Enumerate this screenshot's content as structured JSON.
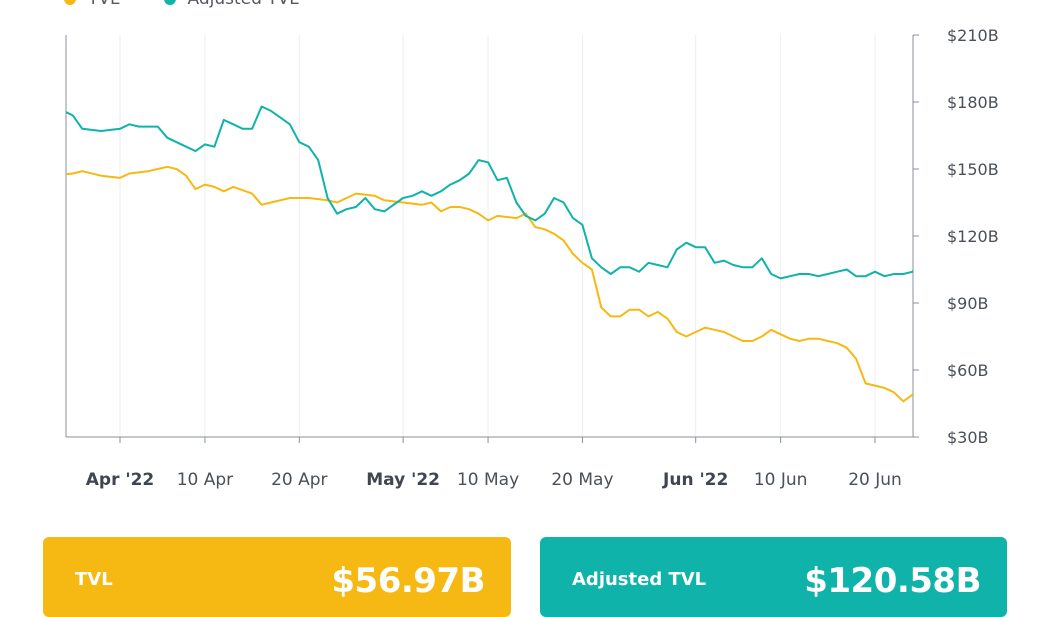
{
  "legend": [
    {
      "label": "TVL",
      "color": "#f6b913"
    },
    {
      "label": "Adjusted TVL",
      "color": "#0fb3a9"
    }
  ],
  "cards": {
    "tvl": {
      "label": "TVL",
      "value": "$56.97B"
    },
    "adjusted": {
      "label": "Adjusted TVL",
      "value": "$120.58B"
    }
  },
  "chart_data": {
    "type": "line",
    "x_range": [
      "2022-03-24",
      "2022-06-23"
    ],
    "ylim": [
      30,
      210
    ],
    "y_ticks": [
      {
        "value": 210,
        "label": "$210B"
      },
      {
        "value": 180,
        "label": "$180B"
      },
      {
        "value": 150,
        "label": "$150B"
      },
      {
        "value": 120,
        "label": "$120B"
      },
      {
        "value": 90,
        "label": "$90B"
      },
      {
        "value": 60,
        "label": "$60B"
      },
      {
        "value": 30,
        "label": "$30B"
      }
    ],
    "x_ticks": [
      {
        "date": "2022-04-01",
        "label": "Apr '22",
        "bold": true
      },
      {
        "date": "2022-04-10",
        "label": "10 Apr",
        "bold": false
      },
      {
        "date": "2022-04-20",
        "label": "20 Apr",
        "bold": false
      },
      {
        "date": "2022-05-01",
        "label": "May '22",
        "bold": true
      },
      {
        "date": "2022-05-10",
        "label": "10 May",
        "bold": false
      },
      {
        "date": "2022-05-20",
        "label": "20 May",
        "bold": false
      },
      {
        "date": "2022-06-01",
        "label": "Jun '22",
        "bold": true
      },
      {
        "date": "2022-06-10",
        "label": "10 Jun",
        "bold": false
      },
      {
        "date": "2022-06-20",
        "label": "20 Jun",
        "bold": false
      }
    ],
    "grid": "vertical",
    "legend_position": "top-left",
    "series": [
      {
        "name": "TVL",
        "color": "#f6b913",
        "points": [
          [
            "2022-03-24",
            143
          ],
          [
            "2022-03-25",
            147
          ],
          [
            "2022-03-27",
            148
          ],
          [
            "2022-03-28",
            149
          ],
          [
            "2022-03-30",
            147
          ],
          [
            "2022-04-01",
            146
          ],
          [
            "2022-04-02",
            148
          ],
          [
            "2022-04-04",
            149
          ],
          [
            "2022-04-05",
            150
          ],
          [
            "2022-04-06",
            151
          ],
          [
            "2022-04-07",
            150
          ],
          [
            "2022-04-08",
            147
          ],
          [
            "2022-04-09",
            141
          ],
          [
            "2022-04-10",
            143
          ],
          [
            "2022-04-11",
            142
          ],
          [
            "2022-04-12",
            140
          ],
          [
            "2022-04-13",
            142
          ],
          [
            "2022-04-15",
            139
          ],
          [
            "2022-04-16",
            134
          ],
          [
            "2022-04-17",
            135
          ],
          [
            "2022-04-19",
            137
          ],
          [
            "2022-04-21",
            137
          ],
          [
            "2022-04-23",
            136
          ],
          [
            "2022-04-24",
            135
          ],
          [
            "2022-04-26",
            139
          ],
          [
            "2022-04-28",
            138
          ],
          [
            "2022-04-29",
            136
          ],
          [
            "2022-05-01",
            135
          ],
          [
            "2022-05-03",
            134
          ],
          [
            "2022-05-04",
            135
          ],
          [
            "2022-05-05",
            131
          ],
          [
            "2022-05-06",
            133
          ],
          [
            "2022-05-07",
            133
          ],
          [
            "2022-05-08",
            132
          ],
          [
            "2022-05-09",
            130
          ],
          [
            "2022-05-10",
            127
          ],
          [
            "2022-05-11",
            129
          ],
          [
            "2022-05-13",
            128
          ],
          [
            "2022-05-14",
            130
          ],
          [
            "2022-05-15",
            124
          ],
          [
            "2022-05-16",
            123
          ],
          [
            "2022-05-17",
            121
          ],
          [
            "2022-05-18",
            118
          ],
          [
            "2022-05-19",
            112
          ],
          [
            "2022-05-20",
            108
          ],
          [
            "2022-05-21",
            105
          ],
          [
            "2022-05-22",
            88
          ],
          [
            "2022-05-23",
            84
          ],
          [
            "2022-05-24",
            84
          ],
          [
            "2022-05-25",
            87
          ],
          [
            "2022-05-26",
            87
          ],
          [
            "2022-05-27",
            84
          ],
          [
            "2022-05-28",
            86
          ],
          [
            "2022-05-29",
            83
          ],
          [
            "2022-05-30",
            77
          ],
          [
            "2022-05-31",
            75
          ],
          [
            "2022-06-01",
            77
          ],
          [
            "2022-06-02",
            79
          ],
          [
            "2022-06-03",
            78
          ],
          [
            "2022-06-04",
            77
          ],
          [
            "2022-06-05",
            75
          ],
          [
            "2022-06-06",
            73
          ],
          [
            "2022-06-07",
            73
          ],
          [
            "2022-06-08",
            75
          ],
          [
            "2022-06-09",
            78
          ],
          [
            "2022-06-10",
            76
          ],
          [
            "2022-06-11",
            74
          ],
          [
            "2022-06-12",
            73
          ],
          [
            "2022-06-13",
            74
          ],
          [
            "2022-06-14",
            74
          ],
          [
            "2022-06-15",
            73
          ],
          [
            "2022-06-16",
            72
          ],
          [
            "2022-06-17",
            70
          ],
          [
            "2022-06-18",
            65
          ],
          [
            "2022-06-19",
            54
          ],
          [
            "2022-06-20",
            53
          ],
          [
            "2022-06-21",
            52
          ],
          [
            "2022-06-22",
            50
          ],
          [
            "2022-06-23",
            46
          ],
          [
            "2022-06-24",
            49
          ],
          [
            "2022-06-25",
            49
          ],
          [
            "2022-06-26",
            48
          ],
          [
            "2022-06-27",
            57
          ]
        ]
      },
      {
        "name": "Adjusted TVL",
        "color": "#0fb3a9",
        "points": [
          [
            "2022-03-24",
            182
          ],
          [
            "2022-03-25",
            180
          ],
          [
            "2022-03-26",
            176
          ],
          [
            "2022-03-27",
            174
          ],
          [
            "2022-03-28",
            168
          ],
          [
            "2022-03-30",
            167
          ],
          [
            "2022-04-01",
            168
          ],
          [
            "2022-04-02",
            170
          ],
          [
            "2022-04-03",
            169
          ],
          [
            "2022-04-05",
            169
          ],
          [
            "2022-04-06",
            164
          ],
          [
            "2022-04-07",
            162
          ],
          [
            "2022-04-08",
            160
          ],
          [
            "2022-04-09",
            158
          ],
          [
            "2022-04-10",
            161
          ],
          [
            "2022-04-11",
            160
          ],
          [
            "2022-04-12",
            172
          ],
          [
            "2022-04-13",
            170
          ],
          [
            "2022-04-14",
            168
          ],
          [
            "2022-04-15",
            168
          ],
          [
            "2022-04-16",
            178
          ],
          [
            "2022-04-17",
            176
          ],
          [
            "2022-04-18",
            173
          ],
          [
            "2022-04-19",
            170
          ],
          [
            "2022-04-20",
            162
          ],
          [
            "2022-04-21",
            160
          ],
          [
            "2022-04-22",
            154
          ],
          [
            "2022-04-23",
            137
          ],
          [
            "2022-04-24",
            130
          ],
          [
            "2022-04-25",
            132
          ],
          [
            "2022-04-26",
            133
          ],
          [
            "2022-04-27",
            137
          ],
          [
            "2022-04-28",
            132
          ],
          [
            "2022-04-29",
            131
          ],
          [
            "2022-04-30",
            134
          ],
          [
            "2022-05-01",
            137
          ],
          [
            "2022-05-02",
            138
          ],
          [
            "2022-05-03",
            140
          ],
          [
            "2022-05-04",
            138
          ],
          [
            "2022-05-05",
            140
          ],
          [
            "2022-05-06",
            143
          ],
          [
            "2022-05-07",
            145
          ],
          [
            "2022-05-08",
            148
          ],
          [
            "2022-05-09",
            154
          ],
          [
            "2022-05-10",
            153
          ],
          [
            "2022-05-11",
            145
          ],
          [
            "2022-05-12",
            146
          ],
          [
            "2022-05-13",
            135
          ],
          [
            "2022-05-14",
            129
          ],
          [
            "2022-05-15",
            127
          ],
          [
            "2022-05-16",
            130
          ],
          [
            "2022-05-17",
            137
          ],
          [
            "2022-05-18",
            135
          ],
          [
            "2022-05-19",
            128
          ],
          [
            "2022-05-20",
            125
          ],
          [
            "2022-05-21",
            110
          ],
          [
            "2022-05-22",
            106
          ],
          [
            "2022-05-23",
            103
          ],
          [
            "2022-05-24",
            106
          ],
          [
            "2022-05-25",
            106
          ],
          [
            "2022-05-26",
            104
          ],
          [
            "2022-05-27",
            108
          ],
          [
            "2022-05-28",
            107
          ],
          [
            "2022-05-29",
            106
          ],
          [
            "2022-05-30",
            114
          ],
          [
            "2022-05-31",
            117
          ],
          [
            "2022-06-01",
            115
          ],
          [
            "2022-06-02",
            115
          ],
          [
            "2022-06-03",
            108
          ],
          [
            "2022-06-04",
            109
          ],
          [
            "2022-06-05",
            107
          ],
          [
            "2022-06-06",
            106
          ],
          [
            "2022-06-07",
            106
          ],
          [
            "2022-06-08",
            110
          ],
          [
            "2022-06-09",
            103
          ],
          [
            "2022-06-10",
            101
          ],
          [
            "2022-06-11",
            102
          ],
          [
            "2022-06-12",
            103
          ],
          [
            "2022-06-13",
            103
          ],
          [
            "2022-06-14",
            102
          ],
          [
            "2022-06-15",
            103
          ],
          [
            "2022-06-16",
            104
          ],
          [
            "2022-06-17",
            105
          ],
          [
            "2022-06-18",
            102
          ],
          [
            "2022-06-19",
            102
          ],
          [
            "2022-06-20",
            104
          ],
          [
            "2022-06-21",
            102
          ],
          [
            "2022-06-22",
            103
          ],
          [
            "2022-06-23",
            103
          ],
          [
            "2022-06-24",
            104
          ],
          [
            "2022-06-25",
            115
          ],
          [
            "2022-06-26",
            120
          ]
        ]
      }
    ]
  }
}
